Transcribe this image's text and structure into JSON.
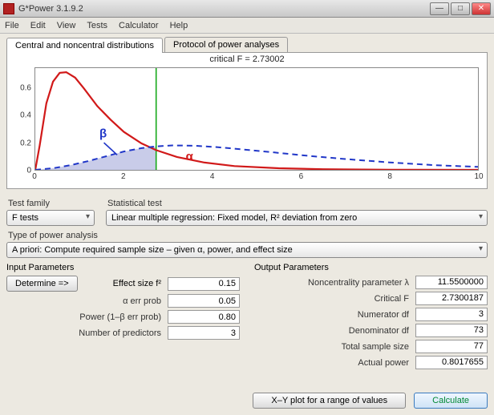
{
  "window": {
    "title": "G*Power 3.1.9.2"
  },
  "menu": [
    "File",
    "Edit",
    "View",
    "Tests",
    "Calculator",
    "Help"
  ],
  "tabs": {
    "active": "Central and noncentral distributions",
    "inactive": "Protocol of power analyses"
  },
  "plot": {
    "critical_label": "critical F = 2.73002",
    "beta_label": "β",
    "alpha_label": "α",
    "yticks": [
      0,
      0.2,
      0.4,
      0.6
    ],
    "xticks": [
      0,
      2,
      4,
      6,
      8,
      10
    ],
    "xlim": [
      0,
      10
    ],
    "ylim": [
      0,
      0.75
    ],
    "critical_x": 2.73002,
    "colors": {
      "central_line": "#d11919",
      "noncentral_line": "#2137c8",
      "critical_line": "#17a81a",
      "fill": "#c9cce9",
      "axis": "#444444"
    },
    "central_curve": [
      [
        0.0,
        0.0
      ],
      [
        0.1,
        0.18
      ],
      [
        0.25,
        0.49
      ],
      [
        0.4,
        0.65
      ],
      [
        0.55,
        0.715
      ],
      [
        0.7,
        0.72
      ],
      [
        0.9,
        0.68
      ],
      [
        1.1,
        0.6
      ],
      [
        1.4,
        0.47
      ],
      [
        1.7,
        0.37
      ],
      [
        2.0,
        0.28
      ],
      [
        2.4,
        0.195
      ],
      [
        2.73,
        0.145
      ],
      [
        3.2,
        0.095
      ],
      [
        3.8,
        0.055
      ],
      [
        4.5,
        0.028
      ],
      [
        5.5,
        0.012
      ],
      [
        6.5,
        0.005
      ],
      [
        8.0,
        0.001
      ],
      [
        10.0,
        0.0
      ]
    ],
    "noncentral_curve": [
      [
        0.0,
        0.0
      ],
      [
        0.4,
        0.012
      ],
      [
        0.8,
        0.035
      ],
      [
        1.2,
        0.065
      ],
      [
        1.6,
        0.1
      ],
      [
        2.0,
        0.135
      ],
      [
        2.4,
        0.16
      ],
      [
        2.73,
        0.173
      ],
      [
        3.1,
        0.18
      ],
      [
        3.6,
        0.178
      ],
      [
        4.1,
        0.168
      ],
      [
        4.7,
        0.15
      ],
      [
        5.4,
        0.128
      ],
      [
        6.2,
        0.102
      ],
      [
        7.0,
        0.08
      ],
      [
        8.0,
        0.055
      ],
      [
        9.0,
        0.035
      ],
      [
        10.0,
        0.022
      ]
    ]
  },
  "test_family": {
    "label": "Test family",
    "value": "F tests"
  },
  "statistical_test": {
    "label": "Statistical test",
    "value": "Linear multiple regression: Fixed model, R² deviation from zero"
  },
  "analysis_type": {
    "label": "Type of power analysis",
    "value": "A priori: Compute required sample size – given α, power, and effect size"
  },
  "input": {
    "heading": "Input Parameters",
    "determine": "Determine =>",
    "rows": [
      {
        "label": "Effect size f²",
        "value": "0.15"
      },
      {
        "label": "α err prob",
        "value": "0.05"
      },
      {
        "label": "Power (1–β err prob)",
        "value": "0.80"
      },
      {
        "label": "Number of predictors",
        "value": "3"
      }
    ]
  },
  "output": {
    "heading": "Output Parameters",
    "rows": [
      {
        "label": "Noncentrality parameter λ",
        "value": "11.5500000"
      },
      {
        "label": "Critical F",
        "value": "2.7300187"
      },
      {
        "label": "Numerator df",
        "value": "3"
      },
      {
        "label": "Denominator df",
        "value": "73"
      },
      {
        "label": "Total sample size",
        "value": "77"
      },
      {
        "label": "Actual power",
        "value": "0.8017655"
      }
    ]
  },
  "buttons": {
    "xyplot": "X–Y plot for a range of values",
    "calculate": "Calculate"
  }
}
